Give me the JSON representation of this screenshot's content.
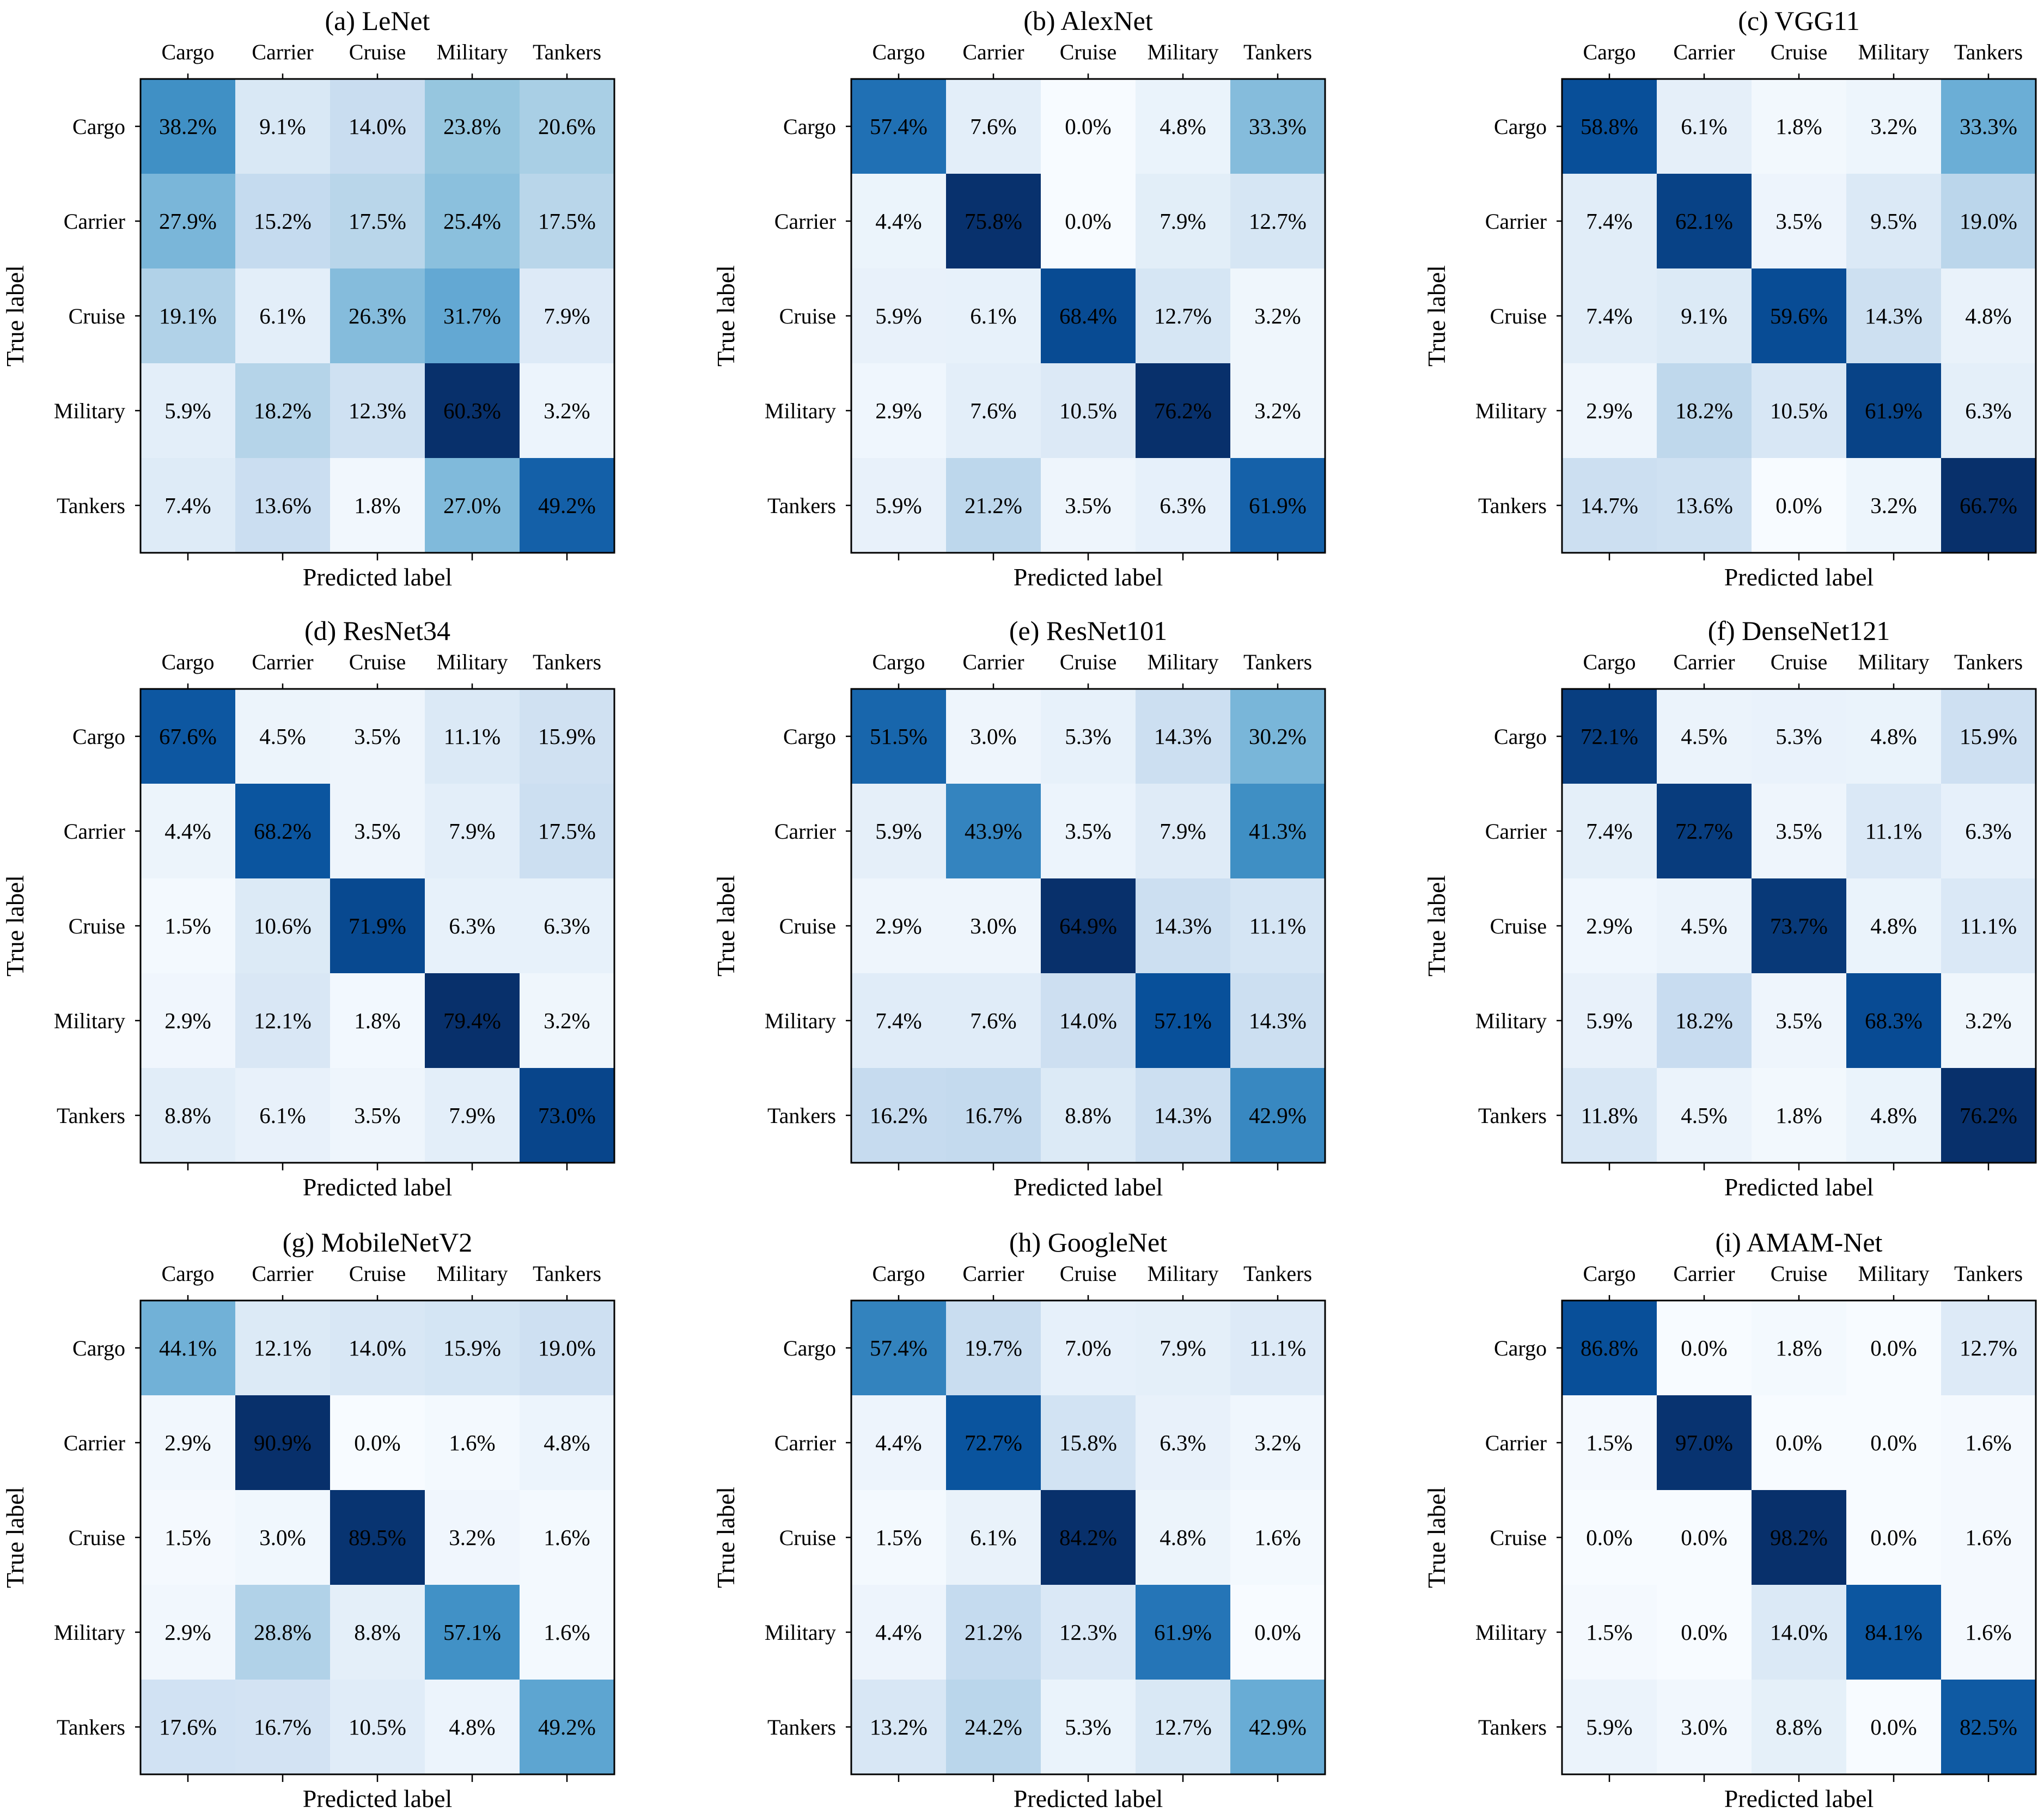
{
  "figure": {
    "classes": [
      "Cargo",
      "Carrier",
      "Cruise",
      "Military",
      "Tankers"
    ],
    "xlabel": "Predicted label",
    "ylabel": "True label",
    "colormap": "Blues",
    "colormap_stops": [
      "#f7fbff",
      "#deebf7",
      "#c6dbef",
      "#9ecae1",
      "#6baed6",
      "#4292c6",
      "#2171b5",
      "#08519c",
      "#08306b"
    ]
  },
  "chart_data": [
    {
      "type": "heatmap",
      "title": "(a) LeNet",
      "xlabel": "Predicted label",
      "ylabel": "True label",
      "x_categories": [
        "Cargo",
        "Carrier",
        "Cruise",
        "Military",
        "Tankers"
      ],
      "y_categories": [
        "Cargo",
        "Carrier",
        "Cruise",
        "Military",
        "Tankers"
      ],
      "values": [
        [
          38.2,
          9.1,
          14.0,
          23.8,
          20.6
        ],
        [
          27.9,
          15.2,
          17.5,
          25.4,
          17.5
        ],
        [
          19.1,
          6.1,
          26.3,
          31.7,
          7.9
        ],
        [
          5.9,
          18.2,
          12.3,
          60.3,
          3.2
        ],
        [
          7.4,
          13.6,
          1.8,
          27.0,
          49.2
        ]
      ],
      "labels": [
        [
          "38.2%",
          "9.1%",
          "14.0%",
          "23.8%",
          "20.6%"
        ],
        [
          "27.9%",
          "15.2%",
          "17.5%",
          "25.4%",
          "17.5%"
        ],
        [
          "19.1%",
          "6.1%",
          "26.3%",
          "31.7%",
          "7.9%"
        ],
        [
          "5.9%",
          "18.2%",
          "12.3%",
          "60.3%",
          "3.2%"
        ],
        [
          "7.4%",
          "13.6%",
          "1.8%",
          "27.0%",
          "49.2%"
        ]
      ]
    },
    {
      "type": "heatmap",
      "title": "(b) AlexNet",
      "xlabel": "Predicted label",
      "ylabel": "True label",
      "x_categories": [
        "Cargo",
        "Carrier",
        "Cruise",
        "Military",
        "Tankers"
      ],
      "y_categories": [
        "Cargo",
        "Carrier",
        "Cruise",
        "Military",
        "Tankers"
      ],
      "values": [
        [
          57.4,
          7.6,
          0.0,
          4.8,
          33.3
        ],
        [
          4.4,
          75.8,
          0.0,
          7.9,
          12.7
        ],
        [
          5.9,
          6.1,
          68.4,
          12.7,
          3.2
        ],
        [
          2.9,
          7.6,
          10.5,
          76.2,
          3.2
        ],
        [
          5.9,
          21.2,
          3.5,
          6.3,
          61.9
        ]
      ],
      "labels": [
        [
          "57.4%",
          "7.6%",
          "0.0%",
          "4.8%",
          "33.3%"
        ],
        [
          "4.4%",
          "75.8%",
          "0.0%",
          "7.9%",
          "12.7%"
        ],
        [
          "5.9%",
          "6.1%",
          "68.4%",
          "12.7%",
          "3.2%"
        ],
        [
          "2.9%",
          "7.6%",
          "10.5%",
          "76.2%",
          "3.2%"
        ],
        [
          "5.9%",
          "21.2%",
          "3.5%",
          "6.3%",
          "61.9%"
        ]
      ]
    },
    {
      "type": "heatmap",
      "title": "(c) VGG11",
      "xlabel": "Predicted label",
      "ylabel": "True label",
      "x_categories": [
        "Cargo",
        "Carrier",
        "Cruise",
        "Military",
        "Tankers"
      ],
      "y_categories": [
        "Cargo",
        "Carrier",
        "Cruise",
        "Military",
        "Tankers"
      ],
      "values": [
        [
          58.8,
          6.1,
          1.8,
          3.2,
          33.3
        ],
        [
          7.4,
          62.1,
          3.5,
          9.5,
          19.0
        ],
        [
          7.4,
          9.1,
          59.6,
          14.3,
          4.8
        ],
        [
          2.9,
          18.2,
          10.5,
          61.9,
          6.3
        ],
        [
          14.7,
          13.6,
          0.0,
          3.2,
          66.7
        ]
      ],
      "labels": [
        [
          "58.8%",
          "6.1%",
          "1.8%",
          "3.2%",
          "33.3%"
        ],
        [
          "7.4%",
          "62.1%",
          "3.5%",
          "9.5%",
          "19.0%"
        ],
        [
          "7.4%",
          "9.1%",
          "59.6%",
          "14.3%",
          "4.8%"
        ],
        [
          "2.9%",
          "18.2%",
          "10.5%",
          "61.9%",
          "6.3%"
        ],
        [
          "14.7%",
          "13.6%",
          "0.0%",
          "3.2%",
          "66.7%"
        ]
      ]
    },
    {
      "type": "heatmap",
      "title": "(d) ResNet34",
      "xlabel": "Predicted label",
      "ylabel": "True label",
      "x_categories": [
        "Cargo",
        "Carrier",
        "Cruise",
        "Military",
        "Tankers"
      ],
      "y_categories": [
        "Cargo",
        "Carrier",
        "Cruise",
        "Military",
        "Tankers"
      ],
      "values": [
        [
          67.6,
          4.5,
          3.5,
          11.1,
          15.9
        ],
        [
          4.4,
          68.2,
          3.5,
          7.9,
          17.5
        ],
        [
          1.5,
          10.6,
          71.9,
          6.3,
          6.3
        ],
        [
          2.9,
          12.1,
          1.8,
          79.4,
          3.2
        ],
        [
          8.8,
          6.1,
          3.5,
          7.9,
          73.0
        ]
      ],
      "labels": [
        [
          "67.6%",
          "4.5%",
          "3.5%",
          "11.1%",
          "15.9%"
        ],
        [
          "4.4%",
          "68.2%",
          "3.5%",
          "7.9%",
          "17.5%"
        ],
        [
          "1.5%",
          "10.6%",
          "71.9%",
          "6.3%",
          "6.3%"
        ],
        [
          "2.9%",
          "12.1%",
          "1.8%",
          "79.4%",
          "3.2%"
        ],
        [
          "8.8%",
          "6.1%",
          "3.5%",
          "7.9%",
          "73.0%"
        ]
      ]
    },
    {
      "type": "heatmap",
      "title": "(e) ResNet101",
      "xlabel": "Predicted label",
      "ylabel": "True label",
      "x_categories": [
        "Cargo",
        "Carrier",
        "Cruise",
        "Military",
        "Tankers"
      ],
      "y_categories": [
        "Cargo",
        "Carrier",
        "Cruise",
        "Military",
        "Tankers"
      ],
      "values": [
        [
          51.5,
          3.0,
          5.3,
          14.3,
          30.2
        ],
        [
          5.9,
          43.9,
          3.5,
          7.9,
          41.3
        ],
        [
          2.9,
          3.0,
          64.9,
          14.3,
          11.1
        ],
        [
          7.4,
          7.6,
          14.0,
          57.1,
          14.3
        ],
        [
          16.2,
          16.7,
          8.8,
          14.3,
          42.9
        ]
      ],
      "labels": [
        [
          "51.5%",
          "3.0%",
          "5.3%",
          "14.3%",
          "30.2%"
        ],
        [
          "5.9%",
          "43.9%",
          "3.5%",
          "7.9%",
          "41.3%"
        ],
        [
          "2.9%",
          "3.0%",
          "64.9%",
          "14.3%",
          "11.1%"
        ],
        [
          "7.4%",
          "7.6%",
          "14.0%",
          "57.1%",
          "14.3%"
        ],
        [
          "16.2%",
          "16.7%",
          "8.8%",
          "14.3%",
          "42.9%"
        ]
      ]
    },
    {
      "type": "heatmap",
      "title": "(f) DenseNet121",
      "xlabel": "Predicted label",
      "ylabel": "True label",
      "x_categories": [
        "Cargo",
        "Carrier",
        "Cruise",
        "Military",
        "Tankers"
      ],
      "y_categories": [
        "Cargo",
        "Carrier",
        "Cruise",
        "Military",
        "Tankers"
      ],
      "values": [
        [
          72.1,
          4.5,
          5.3,
          4.8,
          15.9
        ],
        [
          7.4,
          72.7,
          3.5,
          11.1,
          6.3
        ],
        [
          2.9,
          4.5,
          73.7,
          4.8,
          11.1
        ],
        [
          5.9,
          18.2,
          3.5,
          68.3,
          3.2
        ],
        [
          11.8,
          4.5,
          1.8,
          4.8,
          76.2
        ]
      ],
      "labels": [
        [
          "72.1%",
          "4.5%",
          "5.3%",
          "4.8%",
          "15.9%"
        ],
        [
          "7.4%",
          "72.7%",
          "3.5%",
          "11.1%",
          "6.3%"
        ],
        [
          "2.9%",
          "4.5%",
          "73.7%",
          "4.8%",
          "11.1%"
        ],
        [
          "5.9%",
          "18.2%",
          "3.5%",
          "68.3%",
          "3.2%"
        ],
        [
          "11.8%",
          "4.5%",
          "1.8%",
          "4.8%",
          "76.2%"
        ]
      ]
    },
    {
      "type": "heatmap",
      "title": "(g) MobileNetV2",
      "xlabel": "Predicted label",
      "ylabel": "True label",
      "x_categories": [
        "Cargo",
        "Carrier",
        "Cruise",
        "Military",
        "Tankers"
      ],
      "y_categories": [
        "Cargo",
        "Carrier",
        "Cruise",
        "Military",
        "Tankers"
      ],
      "values": [
        [
          44.1,
          12.1,
          14.0,
          15.9,
          19.0
        ],
        [
          2.9,
          90.9,
          0.0,
          1.6,
          4.8
        ],
        [
          1.5,
          3.0,
          89.5,
          3.2,
          1.6
        ],
        [
          2.9,
          28.8,
          8.8,
          57.1,
          1.6
        ],
        [
          17.6,
          16.7,
          10.5,
          4.8,
          49.2
        ]
      ],
      "labels": [
        [
          "44.1%",
          "12.1%",
          "14.0%",
          "15.9%",
          "19.0%"
        ],
        [
          "2.9%",
          "90.9%",
          "0.0%",
          "1.6%",
          "4.8%"
        ],
        [
          "1.5%",
          "3.0%",
          "89.5%",
          "3.2%",
          "1.6%"
        ],
        [
          "2.9%",
          "28.8%",
          "8.8%",
          "57.1%",
          "1.6%"
        ],
        [
          "17.6%",
          "16.7%",
          "10.5%",
          "4.8%",
          "49.2%"
        ]
      ]
    },
    {
      "type": "heatmap",
      "title": "(h) GoogleNet",
      "xlabel": "Predicted label",
      "ylabel": "True label",
      "x_categories": [
        "Cargo",
        "Carrier",
        "Cruise",
        "Military",
        "Tankers"
      ],
      "y_categories": [
        "Cargo",
        "Carrier",
        "Cruise",
        "Military",
        "Tankers"
      ],
      "values": [
        [
          57.4,
          19.7,
          7.0,
          7.9,
          11.1
        ],
        [
          4.4,
          72.7,
          15.8,
          6.3,
          3.2
        ],
        [
          1.5,
          6.1,
          84.2,
          4.8,
          1.6
        ],
        [
          4.4,
          21.2,
          12.3,
          61.9,
          0.0
        ],
        [
          13.2,
          24.2,
          5.3,
          12.7,
          42.9
        ]
      ],
      "labels": [
        [
          "57.4%",
          "19.7%",
          "7.0%",
          "7.9%",
          "11.1%"
        ],
        [
          "4.4%",
          "72.7%",
          "15.8%",
          "6.3%",
          "3.2%"
        ],
        [
          "1.5%",
          "6.1%",
          "84.2%",
          "4.8%",
          "1.6%"
        ],
        [
          "4.4%",
          "21.2%",
          "12.3%",
          "61.9%",
          "0.0%"
        ],
        [
          "13.2%",
          "24.2%",
          "5.3%",
          "12.7%",
          "42.9%"
        ]
      ]
    },
    {
      "type": "heatmap",
      "title": "(i) AMAM-Net",
      "xlabel": "Predicted label",
      "ylabel": "True label",
      "x_categories": [
        "Cargo",
        "Carrier",
        "Cruise",
        "Military",
        "Tankers"
      ],
      "y_categories": [
        "Cargo",
        "Carrier",
        "Cruise",
        "Military",
        "Tankers"
      ],
      "values": [
        [
          86.8,
          0.0,
          1.8,
          0.0,
          12.7
        ],
        [
          1.5,
          97.0,
          0.0,
          0.0,
          1.6
        ],
        [
          0.0,
          0.0,
          98.2,
          0.0,
          1.6
        ],
        [
          1.5,
          0.0,
          14.0,
          84.1,
          1.6
        ],
        [
          5.9,
          3.0,
          8.8,
          0.0,
          82.5
        ]
      ],
      "labels": [
        [
          "86.8%",
          "0.0%",
          "1.8%",
          "0.0%",
          "12.7%"
        ],
        [
          "1.5%",
          "97.0%",
          "0.0%",
          "0.0%",
          "1.6%"
        ],
        [
          "0.0%",
          "0.0%",
          "98.2%",
          "0.0%",
          "1.6%"
        ],
        [
          "1.5%",
          "0.0%",
          "14.0%",
          "84.1%",
          "1.6%"
        ],
        [
          "5.9%",
          "3.0%",
          "8.8%",
          "0.0%",
          "82.5%"
        ]
      ]
    }
  ]
}
